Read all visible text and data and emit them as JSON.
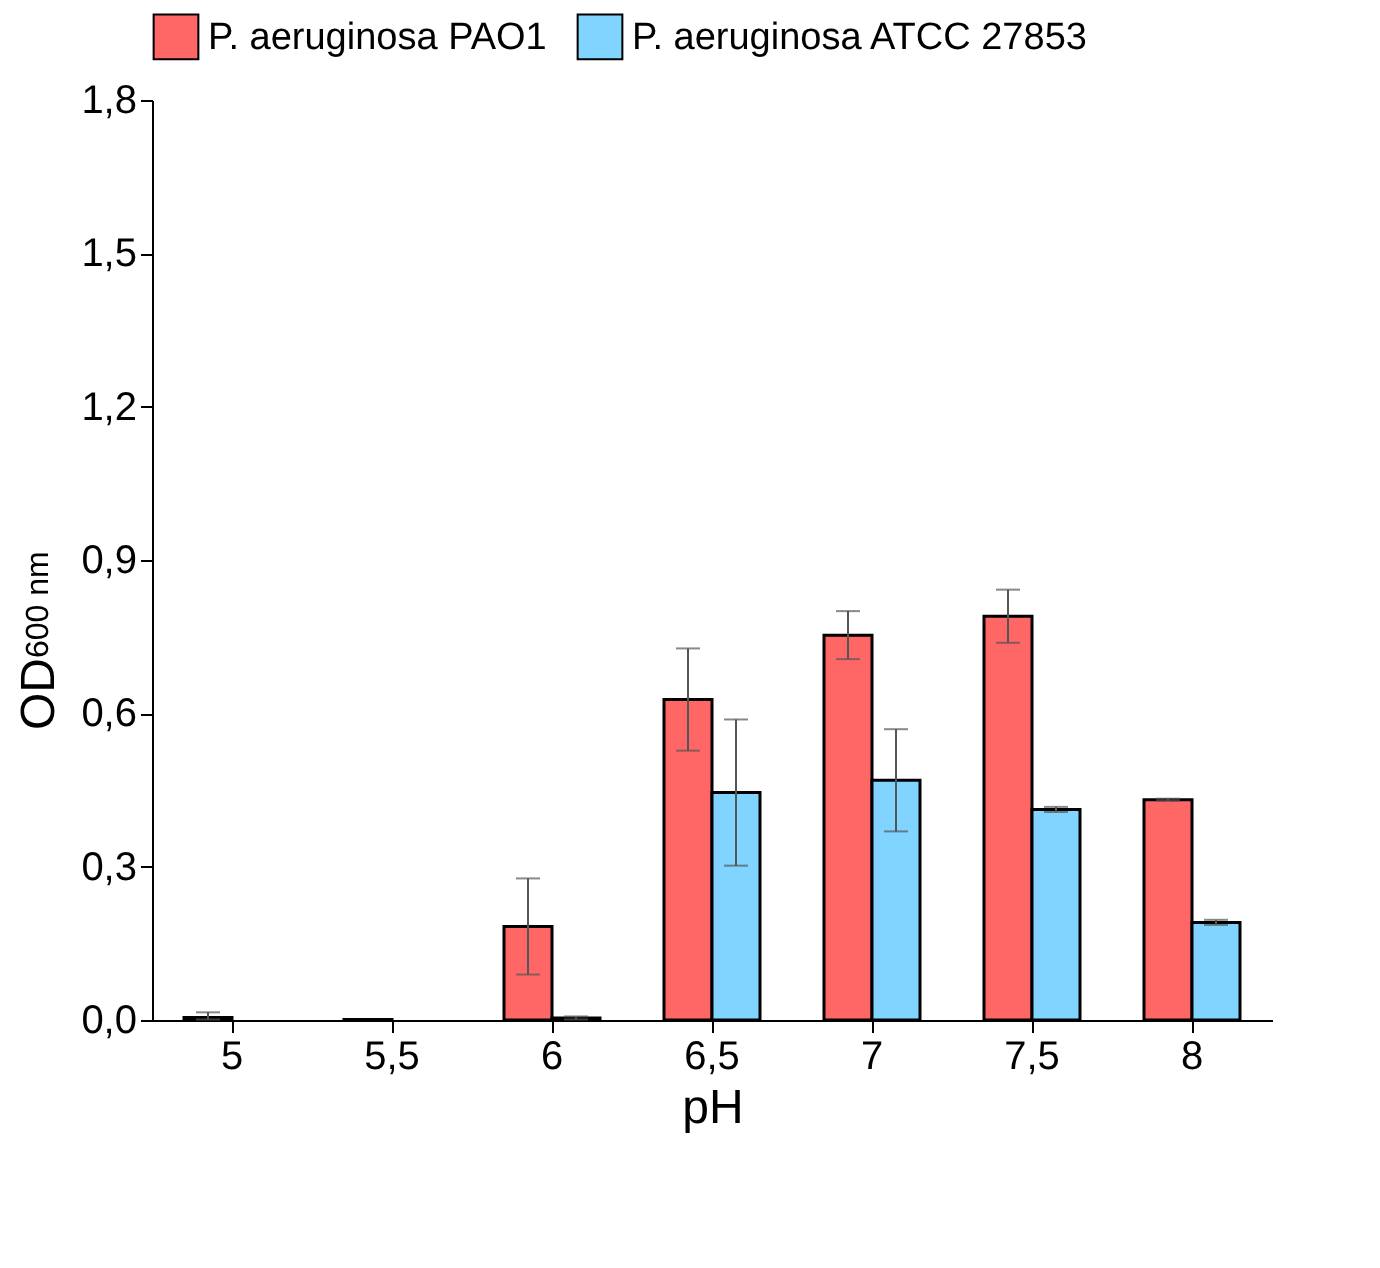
{
  "chart_data": {
    "type": "bar",
    "xlabel": "pH",
    "ylabel": "OD$_{600 nm}$",
    "categories": [
      "5",
      "5,5",
      "6",
      "6,5",
      "7",
      "7,5",
      "8"
    ],
    "series": [
      {
        "name": "P. aeruginosa PAO1",
        "color": "#ff6666",
        "values": [
          0.005,
          0.001,
          0.183,
          0.627,
          0.753,
          0.79,
          0.431
        ],
        "errors": [
          [
            0.004,
            0.01
          ],
          null,
          0.094,
          0.1,
          0.047,
          0.052,
          0.002
        ]
      },
      {
        "name": "P. aeruginosa ATCC 27853",
        "color": "#80d4ff",
        "values": [
          null,
          null,
          0.004,
          0.445,
          0.469,
          0.412,
          0.191
        ],
        "errors": [
          null,
          null,
          0.003,
          0.143,
          0.1,
          0.005,
          0.005
        ]
      }
    ],
    "ylim": [
      0,
      1.8
    ],
    "yticks": [
      {
        "value": 0,
        "label": "0,0"
      },
      {
        "value": 0.3,
        "label": "0,3"
      },
      {
        "value": 0.6,
        "label": "0,6"
      },
      {
        "value": 0.9,
        "label": "0,9"
      },
      {
        "value": 1.2,
        "label": "1,2"
      },
      {
        "value": 1.5,
        "label": "1,5"
      },
      {
        "value": 1.8,
        "label": "1,8"
      }
    ],
    "legend": "top",
    "grid": false
  }
}
